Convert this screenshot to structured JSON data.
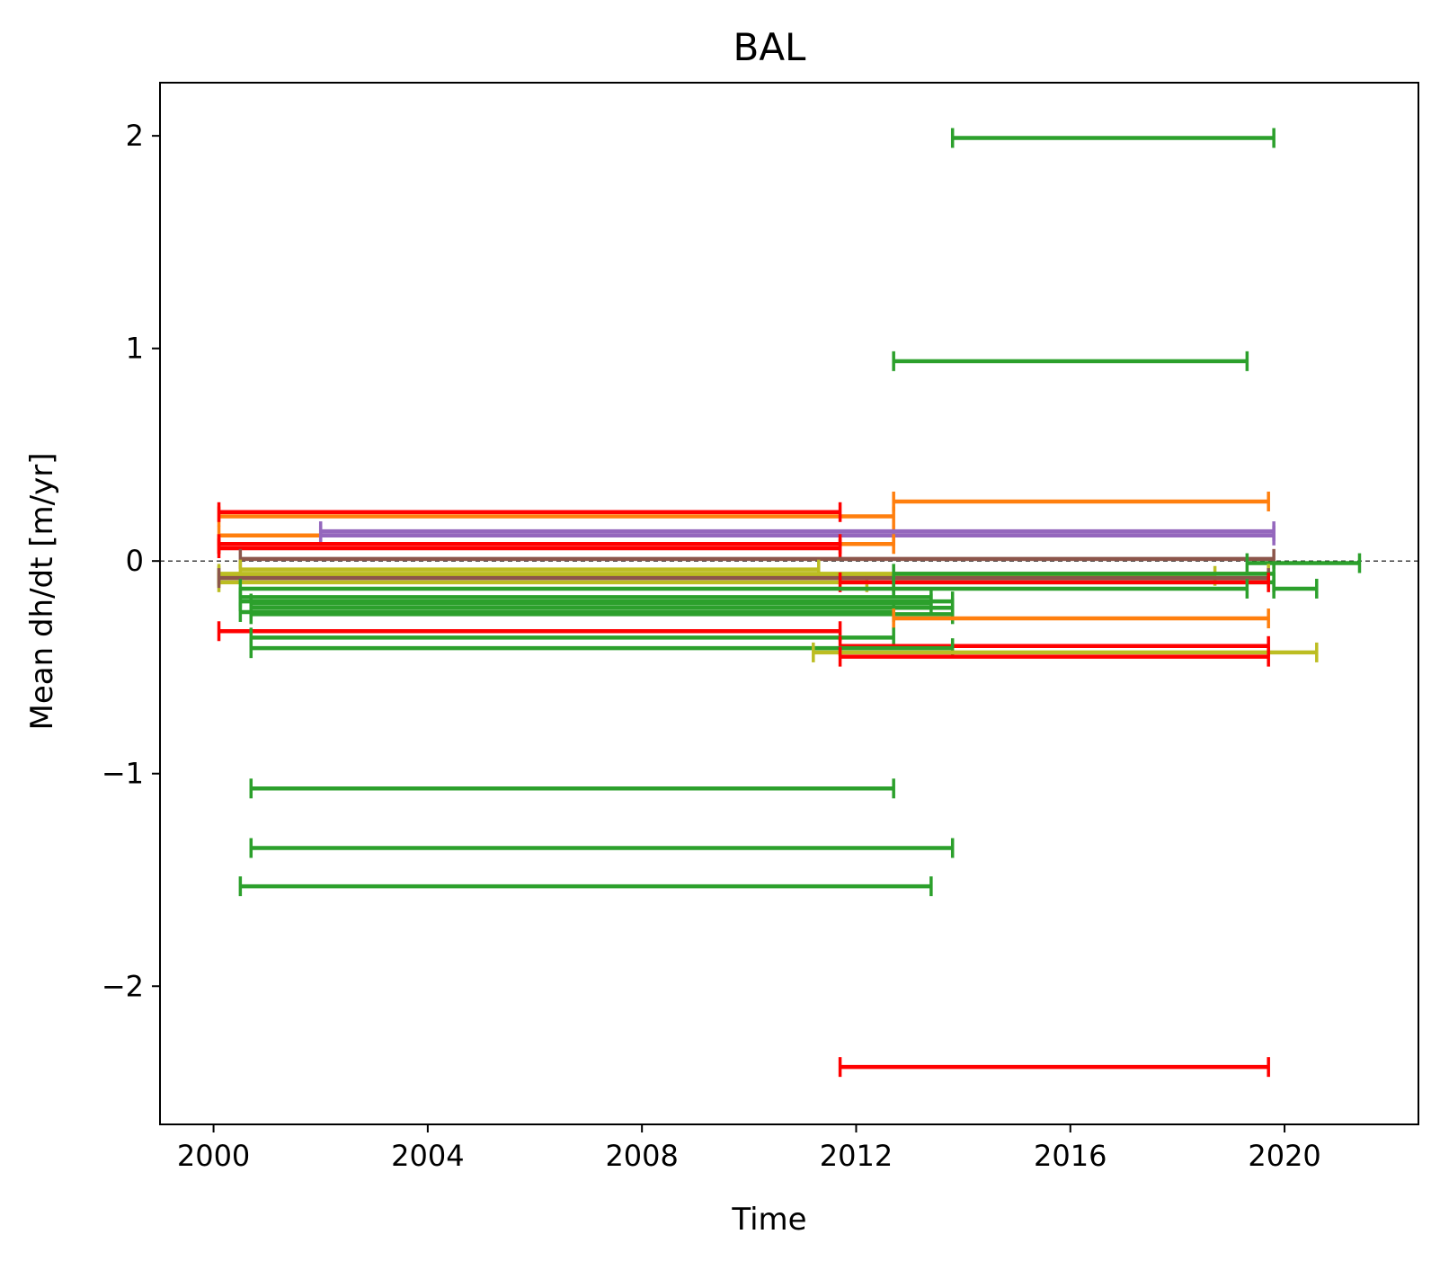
{
  "chart_data": {
    "type": "line",
    "title": "BAL",
    "xlabel": "Time",
    "ylabel": "Mean dh/dt [m/yr]",
    "xlim": [
      1999.0,
      2022.5
    ],
    "ylim": [
      -2.65,
      2.25
    ],
    "xticks": [
      2000,
      2004,
      2008,
      2012,
      2016,
      2020
    ],
    "xtick_labels": [
      "2000",
      "2004",
      "2008",
      "2012",
      "2016",
      "2020"
    ],
    "yticks": [
      2,
      1,
      0,
      -1,
      -2
    ],
    "ytick_labels": [
      "2",
      "1",
      "0",
      "−1",
      "−2"
    ],
    "reference_line": {
      "y": 0,
      "style": "dashed",
      "color": "#000000"
    },
    "grid": false,
    "legend": "none",
    "colors": {
      "green": "#2ca02c",
      "orange": "#ff7f0e",
      "red": "#ff0000",
      "purple": "#9467bd",
      "olive": "#bcbd22",
      "brown": "#8c564b"
    },
    "segments": [
      {
        "start": 2013.8,
        "end": 2019.8,
        "value": 1.99,
        "color": "green"
      },
      {
        "start": 2012.7,
        "end": 2019.3,
        "value": 0.94,
        "color": "green"
      },
      {
        "start": 2012.7,
        "end": 2019.7,
        "value": 0.28,
        "color": "orange"
      },
      {
        "start": 2000.1,
        "end": 2012.7,
        "value": 0.21,
        "color": "orange"
      },
      {
        "start": 2000.1,
        "end": 2011.7,
        "value": 0.23,
        "color": "red"
      },
      {
        "start": 2000.1,
        "end": 2012.7,
        "value": 0.12,
        "color": "orange"
      },
      {
        "start": 2002.0,
        "end": 2019.8,
        "value": 0.14,
        "color": "purple"
      },
      {
        "start": 2002.0,
        "end": 2019.8,
        "value": 0.12,
        "color": "purple"
      },
      {
        "start": 2000.1,
        "end": 2012.7,
        "value": 0.08,
        "color": "orange"
      },
      {
        "start": 2000.1,
        "end": 2011.7,
        "value": 0.08,
        "color": "red"
      },
      {
        "start": 2000.1,
        "end": 2011.7,
        "value": 0.06,
        "color": "red"
      },
      {
        "start": 2000.5,
        "end": 2019.8,
        "value": 0.01,
        "color": "brown"
      },
      {
        "start": 2019.3,
        "end": 2021.4,
        "value": -0.01,
        "color": "green"
      },
      {
        "start": 2000.1,
        "end": 2019.7,
        "value": -0.06,
        "color": "olive"
      },
      {
        "start": 2000.1,
        "end": 2018.7,
        "value": -0.07,
        "color": "olive"
      },
      {
        "start": 2000.5,
        "end": 2011.3,
        "value": -0.04,
        "color": "olive"
      },
      {
        "start": 2000.1,
        "end": 2012.2,
        "value": -0.1,
        "color": "olive"
      },
      {
        "start": 2000.1,
        "end": 2019.7,
        "value": -0.08,
        "color": "brown"
      },
      {
        "start": 2012.7,
        "end": 2019.8,
        "value": -0.06,
        "color": "green"
      },
      {
        "start": 2012.7,
        "end": 2019.8,
        "value": -0.1,
        "color": "green"
      },
      {
        "start": 2011.7,
        "end": 2019.7,
        "value": -0.1,
        "color": "red"
      },
      {
        "start": 2019.8,
        "end": 2020.6,
        "value": -0.13,
        "color": "green"
      },
      {
        "start": 2012.7,
        "end": 2019.3,
        "value": -0.13,
        "color": "green"
      },
      {
        "start": 2000.5,
        "end": 2012.7,
        "value": -0.13,
        "color": "green"
      },
      {
        "start": 2000.5,
        "end": 2013.4,
        "value": -0.17,
        "color": "green"
      },
      {
        "start": 2000.5,
        "end": 2013.8,
        "value": -0.19,
        "color": "green"
      },
      {
        "start": 2000.7,
        "end": 2013.4,
        "value": -0.2,
        "color": "green"
      },
      {
        "start": 2000.7,
        "end": 2013.8,
        "value": -0.22,
        "color": "green"
      },
      {
        "start": 2000.5,
        "end": 2012.7,
        "value": -0.24,
        "color": "green"
      },
      {
        "start": 2000.7,
        "end": 2013.8,
        "value": -0.25,
        "color": "green"
      },
      {
        "start": 2012.7,
        "end": 2019.7,
        "value": -0.27,
        "color": "orange"
      },
      {
        "start": 2000.1,
        "end": 2011.7,
        "value": -0.33,
        "color": "red"
      },
      {
        "start": 2000.7,
        "end": 2012.7,
        "value": -0.36,
        "color": "green"
      },
      {
        "start": 2011.7,
        "end": 2019.7,
        "value": -0.4,
        "color": "red"
      },
      {
        "start": 2000.7,
        "end": 2013.8,
        "value": -0.41,
        "color": "green"
      },
      {
        "start": 2011.2,
        "end": 2020.6,
        "value": -0.43,
        "color": "olive"
      },
      {
        "start": 2011.7,
        "end": 2019.7,
        "value": -0.45,
        "color": "red"
      },
      {
        "start": 2000.7,
        "end": 2012.7,
        "value": -1.07,
        "color": "green"
      },
      {
        "start": 2000.7,
        "end": 2013.8,
        "value": -1.35,
        "color": "green"
      },
      {
        "start": 2000.5,
        "end": 2013.4,
        "value": -1.53,
        "color": "green"
      },
      {
        "start": 2011.7,
        "end": 2019.7,
        "value": -2.38,
        "color": "red"
      }
    ]
  }
}
